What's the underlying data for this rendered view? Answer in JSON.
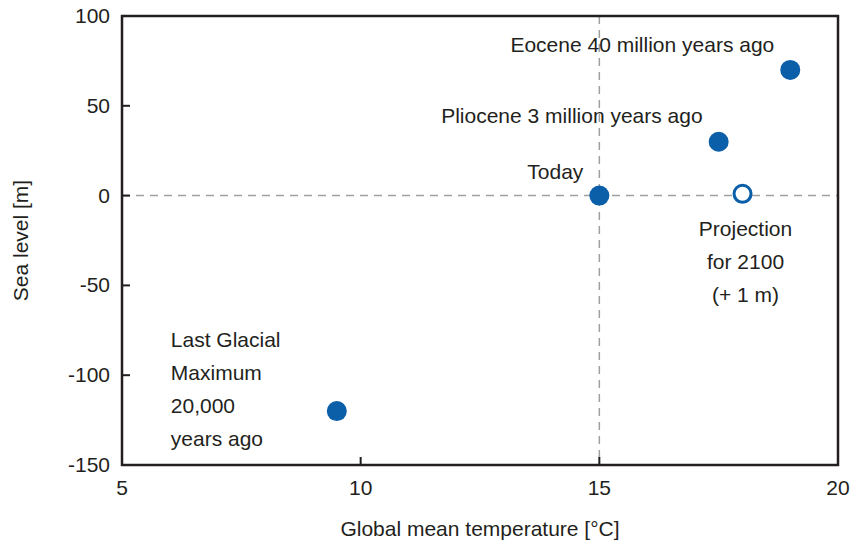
{
  "chart_data": {
    "type": "scatter",
    "x_label": "Global mean temperature [°C]",
    "y_label": "Sea level [m]",
    "xlim": [
      5,
      20
    ],
    "xticks": [
      5,
      10,
      15,
      20
    ],
    "ylim": [
      -150,
      100
    ],
    "yticks": [
      -150,
      -100,
      -50,
      0,
      50,
      100
    ],
    "grid": false,
    "series": [
      {
        "color": "#0b5ea8",
        "marker": "filled",
        "x": [
          19,
          17.5,
          15,
          9.5
        ],
        "values": [
          70,
          30,
          0,
          -120
        ],
        "labels": [
          "Eocene 40 million years ago",
          "Pliocene 3 million years ago",
          "Today",
          "Last Glacial\nMaximum\n20,000\nyears ago"
        ]
      },
      {
        "color": "#0b5ea8",
        "marker": "open",
        "x": [
          18
        ],
        "values": [
          1
        ],
        "labels": [
          "Projection\nfor 2100\n(+ 1 m)"
        ]
      }
    ]
  }
}
